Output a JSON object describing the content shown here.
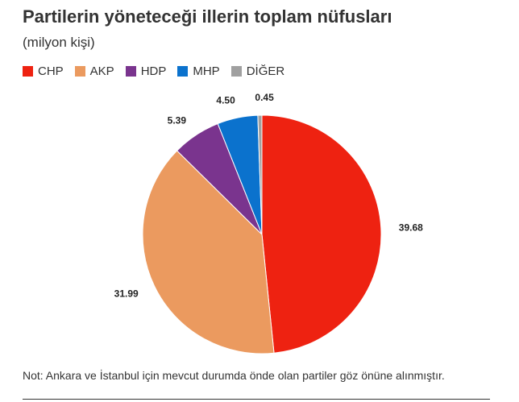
{
  "chart_data": {
    "type": "pie",
    "title": "Partilerin yöneteceği illerin toplam nüfusları",
    "subtitle": "(milyon kişi)",
    "legend_position": "top-left",
    "categories": [
      "CHP",
      "AKP",
      "HDP",
      "MHP",
      "DİĞER"
    ],
    "values": [
      39.68,
      31.99,
      5.39,
      4.5,
      0.45
    ],
    "value_labels": [
      "39.68",
      "31.99",
      "5.39",
      "4.50",
      "0.45"
    ],
    "colors": [
      "#ee2211",
      "#eb9a5f",
      "#7a348e",
      "#0b72cd",
      "#a0a0a0"
    ],
    "start_angle_deg": 0,
    "direction": "clockwise"
  },
  "note": "Not: Ankara ve İstanbul için mevcut durumda önde olan partiler göz önüne alınmıştır."
}
